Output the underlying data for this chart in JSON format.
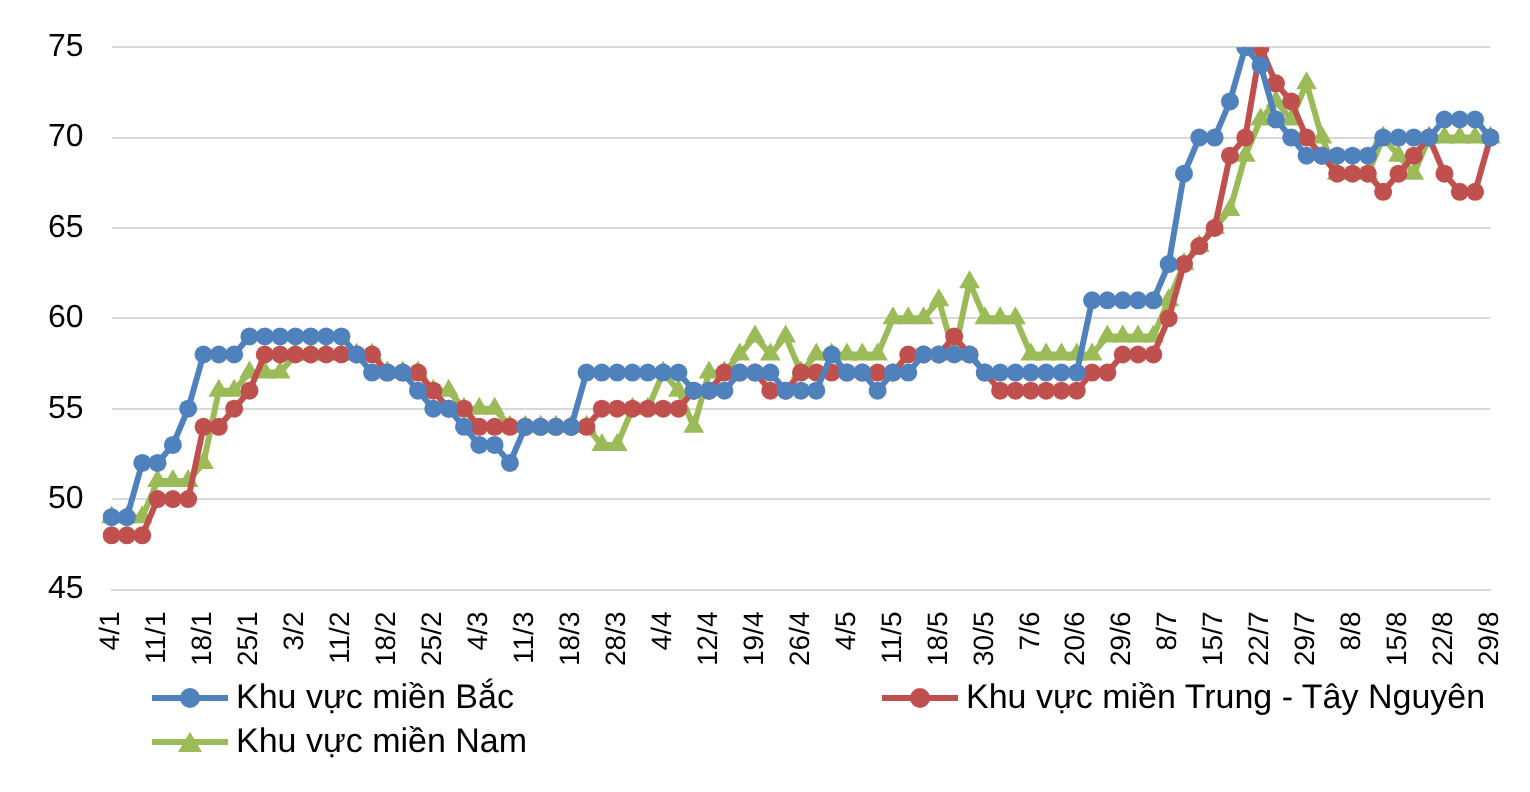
{
  "chart_data": {
    "type": "line",
    "categories": [
      "4/1",
      null,
      null,
      "11/1",
      null,
      null,
      "18/1",
      null,
      null,
      "25/1",
      null,
      null,
      "3/2",
      null,
      null,
      "11/2",
      null,
      null,
      "18/2",
      null,
      null,
      "25/2",
      null,
      null,
      "4/3",
      null,
      null,
      "11/3",
      null,
      null,
      "18/3",
      null,
      null,
      "28/3",
      null,
      null,
      "4/4",
      null,
      null,
      "12/4",
      null,
      null,
      "19/4",
      null,
      null,
      "26/4",
      null,
      null,
      "4/5",
      null,
      null,
      "11/5",
      null,
      null,
      "18/5",
      null,
      null,
      "30/5",
      null,
      null,
      "7/6",
      null,
      null,
      "20/6",
      null,
      null,
      "29/6",
      null,
      null,
      "8/7",
      null,
      null,
      "15/7",
      null,
      null,
      "22/7",
      null,
      null,
      "29/7",
      null,
      null,
      "8/8",
      null,
      null,
      "15/8",
      null,
      null,
      "22/8",
      null,
      null,
      "29/8"
    ],
    "series": [
      {
        "name": "Khu vực miền Bắc",
        "color": "#4f81bd",
        "marker": "circle",
        "values": [
          49,
          49,
          52,
          52,
          53,
          55,
          58,
          58,
          58,
          59,
          59,
          59,
          59,
          59,
          59,
          59,
          58,
          57,
          57,
          57,
          56,
          55,
          55,
          54,
          53,
          53,
          52,
          54,
          54,
          54,
          54,
          57,
          57,
          57,
          57,
          57,
          57,
          57,
          56,
          56,
          56,
          57,
          57,
          57,
          56,
          56,
          56,
          58,
          57,
          57,
          56,
          57,
          57,
          58,
          58,
          58,
          58,
          57,
          57,
          57,
          57,
          57,
          57,
          57,
          61,
          61,
          61,
          61,
          61,
          63,
          68,
          70,
          70,
          72,
          75,
          74,
          71,
          70,
          69,
          69,
          69,
          69,
          69,
          70,
          70,
          70,
          70,
          71,
          71,
          71,
          70
        ]
      },
      {
        "name": "Khu vực miền Trung - Tây Nguyên",
        "color": "#c0504d",
        "marker": "circle",
        "values": [
          48,
          48,
          48,
          50,
          50,
          50,
          54,
          54,
          55,
          56,
          58,
          58,
          58,
          58,
          58,
          58,
          58,
          58,
          57,
          57,
          57,
          56,
          55,
          55,
          54,
          54,
          54,
          54,
          54,
          54,
          54,
          54,
          55,
          55,
          55,
          55,
          55,
          55,
          56,
          56,
          57,
          57,
          57,
          56,
          56,
          57,
          57,
          57,
          57,
          57,
          57,
          57,
          58,
          58,
          58,
          59,
          58,
          57,
          56,
          56,
          56,
          56,
          56,
          56,
          57,
          57,
          58,
          58,
          58,
          60,
          63,
          64,
          65,
          69,
          70,
          75,
          73,
          72,
          70,
          69,
          68,
          68,
          68,
          67,
          68,
          69,
          70,
          68,
          67,
          67,
          70
        ]
      },
      {
        "name": "Khu vực miền Nam",
        "color": "#9bbb59",
        "marker": "triangle",
        "values": [
          49,
          49,
          49,
          51,
          51,
          51,
          52,
          56,
          56,
          57,
          57,
          57,
          58,
          58,
          58,
          58,
          58,
          58,
          57,
          57,
          57,
          56,
          56,
          55,
          55,
          55,
          54,
          54,
          54,
          54,
          54,
          54,
          53,
          53,
          55,
          55,
          57,
          56,
          54,
          57,
          57,
          58,
          59,
          58,
          59,
          57,
          58,
          58,
          58,
          58,
          58,
          60,
          60,
          60,
          61,
          58,
          62,
          60,
          60,
          60,
          58,
          58,
          58,
          58,
          58,
          59,
          59,
          59,
          59,
          61,
          63,
          64,
          65,
          66,
          69,
          71,
          72,
          71,
          73,
          70,
          68,
          68,
          68,
          70,
          69,
          68,
          70,
          70,
          70,
          70,
          70
        ]
      }
    ],
    "ylim": [
      45,
      75
    ],
    "yticks": [
      45,
      50,
      55,
      60,
      65,
      70,
      75
    ],
    "grid": "y",
    "legend": "bottom",
    "line_style": "solid"
  }
}
